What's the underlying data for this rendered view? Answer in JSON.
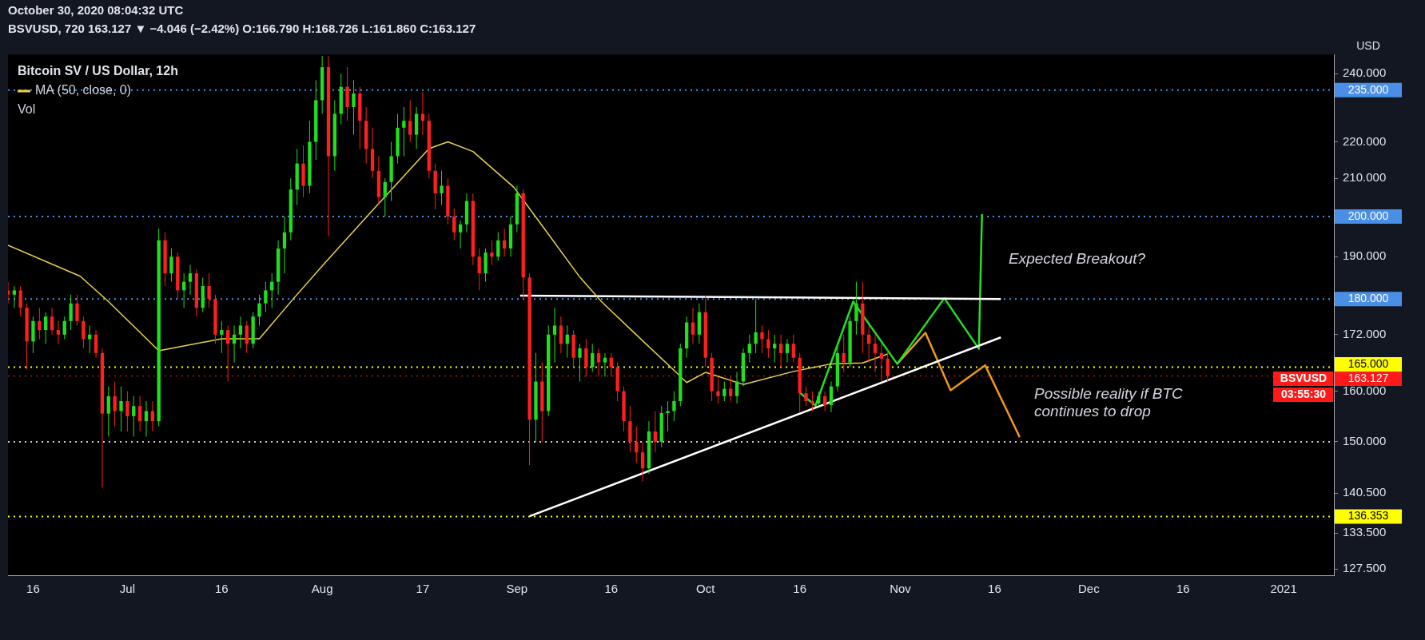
{
  "chart_data": {
    "type": "candlestick",
    "title": "Bitcoin SV / US Dollar, 12h",
    "subtitle": "BSVUSD, 720 163.127 ▼ −4.046 (−2.42%) O:166.790 H:168.726 L:161.860 C:163.127",
    "annotations": [
      "October 30, 2020 08:04:32 UTC",
      "Vol",
      "Expected Breakout?",
      "Possible reality if BTC continues to drop",
      "BSVUSD",
      "03:55:30",
      "USD"
    ],
    "x": [
      "2020-06-12",
      "2020-06-13",
      "2020-06-14",
      "2020-06-15",
      "2020-06-16",
      "2020-06-17",
      "2020-06-18",
      "2020-06-19",
      "2020-06-20",
      "2020-06-21",
      "2020-06-22",
      "2020-06-23",
      "2020-06-24",
      "2020-06-25",
      "2020-06-26",
      "2020-06-27",
      "2020-06-28",
      "2020-06-29",
      "2020-06-30",
      "2020-07-01",
      "2020-07-02",
      "2020-07-03",
      "2020-07-04",
      "2020-07-05",
      "2020-07-06",
      "2020-07-07",
      "2020-07-08",
      "2020-07-09",
      "2020-07-10",
      "2020-07-11",
      "2020-07-12",
      "2020-07-13",
      "2020-07-14",
      "2020-07-15",
      "2020-07-16",
      "2020-07-17",
      "2020-07-18",
      "2020-07-19",
      "2020-07-20",
      "2020-07-21",
      "2020-07-22",
      "2020-07-23",
      "2020-07-24",
      "2020-07-25",
      "2020-07-26",
      "2020-07-27",
      "2020-07-28",
      "2020-07-29",
      "2020-07-30",
      "2020-07-31",
      "2020-08-01",
      "2020-08-02",
      "2020-08-03",
      "2020-08-04",
      "2020-08-05",
      "2020-08-06",
      "2020-08-07",
      "2020-08-08",
      "2020-08-09",
      "2020-08-10",
      "2020-08-11",
      "2020-08-12",
      "2020-08-13",
      "2020-08-14",
      "2020-08-15",
      "2020-08-16",
      "2020-08-17",
      "2020-08-18",
      "2020-08-19",
      "2020-08-20",
      "2020-08-21",
      "2020-08-22",
      "2020-08-23",
      "2020-08-24",
      "2020-08-25",
      "2020-08-26",
      "2020-08-27",
      "2020-08-28",
      "2020-08-29",
      "2020-08-30",
      "2020-08-31",
      "2020-09-01",
      "2020-09-02",
      "2020-09-03",
      "2020-09-04",
      "2020-09-05",
      "2020-09-06",
      "2020-09-07",
      "2020-09-08",
      "2020-09-09",
      "2020-09-10",
      "2020-09-11",
      "2020-09-12",
      "2020-09-13",
      "2020-09-14",
      "2020-09-15",
      "2020-09-16",
      "2020-09-17",
      "2020-09-18",
      "2020-09-19",
      "2020-09-20",
      "2020-09-21",
      "2020-09-22",
      "2020-09-23",
      "2020-09-24",
      "2020-09-25",
      "2020-09-26",
      "2020-09-27",
      "2020-09-28",
      "2020-09-29",
      "2020-09-30",
      "2020-10-01",
      "2020-10-02",
      "2020-10-03",
      "2020-10-04",
      "2020-10-05",
      "2020-10-06",
      "2020-10-07",
      "2020-10-08",
      "2020-10-09",
      "2020-10-10",
      "2020-10-11",
      "2020-10-12",
      "2020-10-13",
      "2020-10-14",
      "2020-10-15",
      "2020-10-16",
      "2020-10-17",
      "2020-10-18",
      "2020-10-19",
      "2020-10-20",
      "2020-10-21",
      "2020-10-22",
      "2020-10-23",
      "2020-10-24",
      "2020-10-25",
      "2020-10-26",
      "2020-10-27",
      "2020-10-28",
      "2020-10-29",
      "2020-10-30"
    ],
    "ohlc": [
      [
        182,
        184,
        179,
        181
      ],
      [
        181,
        183,
        178,
        182
      ],
      [
        182,
        183,
        176,
        178
      ],
      [
        178,
        179,
        164.5,
        170.5
      ],
      [
        170.5,
        176,
        168,
        175
      ],
      [
        175,
        178,
        171,
        173
      ],
      [
        173,
        177,
        170,
        176
      ],
      [
        176,
        178,
        172,
        173
      ],
      [
        173,
        175,
        170,
        172
      ],
      [
        172,
        176,
        171,
        175
      ],
      [
        175,
        181,
        173,
        179
      ],
      [
        179,
        181,
        174,
        175
      ],
      [
        175,
        176,
        169,
        171
      ],
      [
        171,
        174,
        168,
        172
      ],
      [
        172,
        173,
        167,
        168
      ],
      [
        168,
        169,
        141.5,
        155.5
      ],
      [
        155.5,
        161,
        151,
        159
      ],
      [
        159,
        162,
        153,
        156
      ],
      [
        156,
        161,
        152,
        158
      ],
      [
        158,
        160,
        152,
        155
      ],
      [
        155,
        159,
        151,
        157
      ],
      [
        157,
        159,
        152,
        154
      ],
      [
        154,
        158,
        151,
        156
      ],
      [
        156,
        158,
        152,
        154
      ],
      [
        154,
        197,
        153,
        194
      ],
      [
        194,
        196,
        183,
        186
      ],
      [
        186,
        192,
        184,
        190
      ],
      [
        190,
        191,
        180,
        182
      ],
      [
        182,
        186,
        178,
        184
      ],
      [
        184,
        188,
        181,
        186
      ],
      [
        186,
        187,
        176,
        178
      ],
      [
        178,
        185,
        177,
        183
      ],
      [
        183,
        186,
        178,
        180
      ],
      [
        180,
        181,
        170,
        172
      ],
      [
        172,
        175,
        168,
        173
      ],
      [
        173,
        174,
        162,
        170
      ],
      [
        170,
        174,
        166,
        172
      ],
      [
        172,
        176,
        169,
        174
      ],
      [
        174,
        175,
        168,
        170
      ],
      [
        170,
        177,
        169,
        176
      ],
      [
        176,
        181,
        174,
        179
      ],
      [
        179,
        184,
        177,
        182
      ],
      [
        182,
        186,
        178,
        184
      ],
      [
        184,
        194,
        181,
        192
      ],
      [
        192,
        200,
        186,
        196
      ],
      [
        196,
        210,
        194,
        207
      ],
      [
        207,
        218,
        203,
        214
      ],
      [
        214,
        219,
        205,
        208
      ],
      [
        208,
        226,
        206,
        220
      ],
      [
        220,
        238,
        215,
        232
      ],
      [
        232,
        245.5,
        228,
        242
      ],
      [
        242,
        245.5,
        195,
        216
      ],
      [
        216,
        232,
        212,
        228
      ],
      [
        228,
        240,
        225,
        236
      ],
      [
        236,
        242,
        226,
        230
      ],
      [
        230,
        238,
        222,
        234
      ],
      [
        234,
        236,
        218,
        226
      ],
      [
        226,
        230,
        214,
        218
      ],
      [
        218,
        224,
        210,
        212
      ],
      [
        212,
        216,
        203,
        205
      ],
      [
        205,
        210,
        200,
        209
      ],
      [
        209,
        220,
        204,
        216
      ],
      [
        216,
        228,
        214,
        224
      ],
      [
        224,
        230,
        216,
        226
      ],
      [
        226,
        232,
        220,
        222
      ],
      [
        222,
        230,
        218,
        228
      ],
      [
        228,
        234.5,
        222,
        226
      ],
      [
        226,
        228,
        210,
        212
      ],
      [
        212,
        214,
        201.8,
        206
      ],
      [
        206,
        212,
        203,
        208
      ],
      [
        208,
        210,
        198,
        200
      ],
      [
        200,
        202,
        194,
        196
      ],
      [
        196,
        199,
        192,
        198
      ],
      [
        198,
        206,
        196,
        204
      ],
      [
        204,
        206,
        188,
        190
      ],
      [
        190,
        192,
        182,
        186
      ],
      [
        186,
        192,
        184,
        191
      ],
      [
        191,
        194,
        188,
        190
      ],
      [
        190,
        196,
        189,
        194
      ],
      [
        194,
        197,
        190,
        192
      ],
      [
        192,
        200,
        190,
        198
      ],
      [
        198,
        208,
        196,
        206
      ],
      [
        206,
        207,
        180,
        185
      ],
      [
        185,
        186,
        145.6,
        154.3
      ],
      [
        154.3,
        168,
        150,
        162
      ],
      [
        162,
        166,
        150,
        156
      ],
      [
        156,
        174,
        155,
        172
      ],
      [
        172,
        178,
        166,
        174
      ],
      [
        174,
        176,
        168,
        170
      ],
      [
        170,
        174,
        167,
        172
      ],
      [
        172,
        173,
        165,
        167
      ],
      [
        167,
        170,
        162,
        169
      ],
      [
        169,
        171,
        163,
        165
      ],
      [
        165,
        170,
        164,
        168
      ],
      [
        168,
        169,
        163,
        166
      ],
      [
        166,
        168,
        163,
        167
      ],
      [
        167,
        168,
        163,
        165
      ],
      [
        165,
        166,
        158,
        160
      ],
      [
        160,
        161,
        152,
        154
      ],
      [
        154,
        157,
        148,
        150
      ],
      [
        150,
        153,
        146,
        148
      ],
      [
        148,
        150,
        142.6,
        145
      ],
      [
        145,
        154,
        144,
        152
      ],
      [
        152,
        156,
        148,
        150
      ],
      [
        150,
        157,
        149,
        155.6
      ],
      [
        155.6,
        158,
        152,
        156
      ],
      [
        156,
        160,
        154,
        158
      ],
      [
        158,
        170,
        157,
        169
      ],
      [
        169,
        176,
        167,
        174.7
      ],
      [
        174.7,
        178,
        170,
        172
      ],
      [
        172,
        179,
        170,
        177
      ],
      [
        177,
        180.8,
        165,
        167
      ],
      [
        167,
        168,
        158,
        160
      ],
      [
        160,
        163,
        157.5,
        159
      ],
      [
        159,
        162,
        158,
        160.5
      ],
      [
        160.5,
        163,
        158,
        159
      ],
      [
        159,
        164,
        157.5,
        162
      ],
      [
        162,
        169,
        161,
        168
      ],
      [
        168,
        172,
        166,
        170
      ],
      [
        170,
        180,
        168,
        172.5
      ],
      [
        172.5,
        174,
        168,
        171
      ],
      [
        171,
        173,
        167,
        169
      ],
      [
        169,
        172,
        166,
        170
      ],
      [
        170,
        172,
        165,
        168
      ],
      [
        168,
        171,
        166,
        170
      ],
      [
        170,
        172,
        166,
        167
      ],
      [
        167,
        168,
        155.8,
        159.6
      ],
      [
        159.6,
        161,
        157,
        158
      ],
      [
        158,
        160,
        156,
        157.5
      ],
      [
        157.5,
        160,
        157,
        159
      ],
      [
        159,
        160,
        156,
        157.2
      ],
      [
        157.2,
        162,
        155.8,
        161
      ],
      [
        161,
        170,
        160,
        168
      ],
      [
        168,
        172,
        164,
        166
      ],
      [
        166,
        176,
        165,
        175
      ],
      [
        175,
        184,
        172,
        179
      ],
      [
        179,
        184,
        168,
        172
      ],
      [
        172,
        174,
        166,
        170
      ],
      [
        170,
        172,
        164,
        168
      ],
      [
        168,
        170,
        162,
        166.79
      ],
      [
        166.79,
        168.726,
        161.86,
        163.127
      ]
    ],
    "series": [
      {
        "name": "MA (50, close, 0)",
        "type": "line",
        "color": "#e8d44d",
        "x": [
          "2020-06-12",
          "2020-06-23T12:00",
          "2020-06-28",
          "2020-07-06",
          "2020-07-16",
          "2020-07-22",
          "2020-07-27T12:00",
          "2020-08-01T12:00",
          "2020-08-08",
          "2020-08-18",
          "2020-08-21",
          "2020-08-25",
          "2020-08-31T12:00",
          "2020-09-05T12:00",
          "2020-09-11",
          "2020-09-14T12:00",
          "2020-09-19T12:00",
          "2020-09-26T12:00",
          "2020-09-28",
          "2020-10-01",
          "2020-10-07",
          "2020-10-15",
          "2020-10-21",
          "2020-10-26",
          "2020-10-30"
        ],
        "values": [
          192.8,
          185.3,
          179.4,
          168.5,
          171.1,
          171.1,
          180.2,
          188.6,
          199.8,
          218.1,
          220,
          217.3,
          207.6,
          196.6,
          185.1,
          179.3,
          172.6,
          163.7,
          161.8,
          163.9,
          161.4,
          164.1,
          165.7,
          165.9,
          167.8
        ]
      },
      {
        "type": "line",
        "color": "#ffffff",
        "x": [
          "2020-09-01T12:00",
          "2020-11-17"
        ],
        "values": [
          180.8,
          180
        ]
      },
      {
        "type": "line",
        "color": "#ffffff",
        "x": [
          "2020-09-03",
          "2020-11-17"
        ],
        "values": [
          136.4,
          171.4
        ]
      },
      {
        "type": "line",
        "color": "#22e022",
        "x": [
          "2020-10-16",
          "2020-10-18T12:00",
          "2020-10-24T12:00",
          "2020-10-31T12:00",
          "2020-11-08",
          "2020-11-13T12:00",
          "2020-11-14"
        ],
        "values": [
          159.7,
          157.1,
          179.4,
          165.7,
          180.2,
          168.9,
          200.6
        ]
      },
      {
        "type": "line",
        "color": "#f0981a",
        "x": [
          "2020-10-31T12:00",
          "2020-11-05",
          "2020-11-09",
          "2020-11-14T12:00",
          "2020-11-20"
        ],
        "values": [
          165.7,
          172.4,
          160.2,
          165.4,
          150.9
        ]
      }
    ],
    "ref_lines": [
      {
        "axis": "y",
        "value": 235,
        "label": "235.000",
        "color": "#4a8fe7",
        "line_style": "dotted"
      },
      {
        "axis": "y",
        "value": 200,
        "label": "200.000",
        "color": "#4a8fe7",
        "line_style": "dotted"
      },
      {
        "axis": "y",
        "value": 180,
        "label": "180.000",
        "color": "#4a8fe7",
        "line_style": "dotted"
      },
      {
        "axis": "y",
        "value": 165,
        "label": "165.000",
        "color": "#ffff00",
        "line_style": "dotted"
      },
      {
        "axis": "y",
        "value": 163.127,
        "label": "163.127",
        "color": "#ff1a1a",
        "line_style": "dotted"
      },
      {
        "axis": "y",
        "value": 150,
        "label": null,
        "color": "#d0d0d0",
        "line_style": "dotted"
      },
      {
        "axis": "y",
        "value": 136.353,
        "label": "136.353",
        "color": "#ffff00",
        "line_style": "dotted"
      }
    ],
    "log": "y",
    "legend": "top left",
    "xlim": [
      "2020-06-12",
      "2021-01-09"
    ],
    "xticks": [
      {
        "value": "2020-06-16",
        "label": "16"
      },
      {
        "value": "2020-07-01",
        "label": "Jul"
      },
      {
        "value": "2020-07-16",
        "label": "16"
      },
      {
        "value": "2020-08-01",
        "label": "Aug"
      },
      {
        "value": "2020-08-17",
        "label": "17"
      },
      {
        "value": "2020-09-01",
        "label": "Sep"
      },
      {
        "value": "2020-09-16",
        "label": "16"
      },
      {
        "value": "2020-10-01",
        "label": "Oct"
      },
      {
        "value": "2020-10-16",
        "label": "16"
      },
      {
        "value": "2020-11-01",
        "label": "Nov"
      },
      {
        "value": "2020-11-16",
        "label": "16"
      },
      {
        "value": "2020-12-01",
        "label": "Dec"
      },
      {
        "value": "2020-12-16",
        "label": "16"
      },
      {
        "value": "2021-01-01",
        "label": "2021"
      }
    ],
    "ylim": [
      126.5,
      246
    ],
    "yticks": [
      {
        "value": 240,
        "label": "240.000"
      },
      {
        "value": 220,
        "label": "220.000"
      },
      {
        "value": 210,
        "label": "210.000"
      },
      {
        "value": 190,
        "label": "190.000"
      },
      {
        "value": 172,
        "label": "172.000"
      },
      {
        "value": 160,
        "label": "160.000"
      },
      {
        "value": 150,
        "label": "150.000"
      },
      {
        "value": 140.5,
        "label": "140.500"
      },
      {
        "value": 133.5,
        "label": "133.500"
      },
      {
        "value": 127.5,
        "label": "127.500"
      }
    ]
  }
}
